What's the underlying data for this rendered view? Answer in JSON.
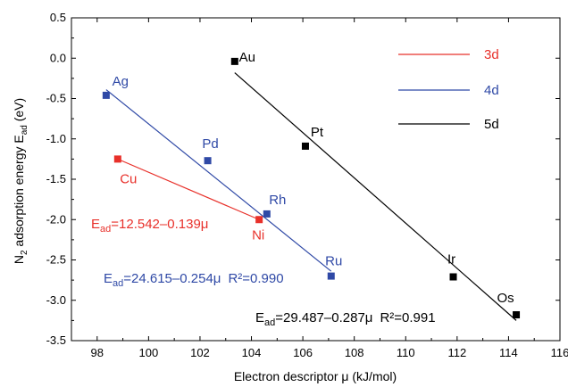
{
  "chart_data": {
    "type": "scatter",
    "title": "",
    "xlabel": "Electron descriptor μ (kJ/mol)",
    "ylabel_parts": {
      "main": "N",
      "sub1": "2",
      "mid": " adsorption energy E",
      "sub2": "ad",
      "unit": " (eV)"
    },
    "xlim": [
      97,
      116
    ],
    "ylim": [
      -3.5,
      0.5
    ],
    "xticks": [
      "98",
      "100",
      "102",
      "104",
      "106",
      "108",
      "110",
      "112",
      "114",
      "116"
    ],
    "yticks": [
      "0.5",
      "0.0",
      "-0.5",
      "-1.0",
      "-1.5",
      "-2.0",
      "-2.5",
      "-3.0",
      "-3.5"
    ],
    "legend_placement": "top-right",
    "grid": false,
    "series": [
      {
        "name": "3d",
        "color": "#e8302a",
        "points": [
          {
            "label": "Cu",
            "x": 98.8,
            "y": -1.25
          },
          {
            "label": "Ni",
            "x": 104.3,
            "y": -2.0
          }
        ],
        "fit_line": [
          [
            98.8,
            -1.25
          ],
          [
            104.3,
            -2.0
          ]
        ],
        "equation": {
          "lhs": "E",
          "lhs_sub": "ad",
          "rhs": "=12.542–0.139μ",
          "r2": ""
        }
      },
      {
        "name": "4d",
        "color": "#2f49a6",
        "points": [
          {
            "label": "Ag",
            "x": 98.35,
            "y": -0.46
          },
          {
            "label": "Pd",
            "x": 102.3,
            "y": -1.27
          },
          {
            "label": "Rh",
            "x": 104.6,
            "y": -1.93
          },
          {
            "label": "Ru",
            "x": 107.1,
            "y": -2.7
          }
        ],
        "fit_line": [
          [
            98.35,
            -0.39
          ],
          [
            107.1,
            -2.64
          ]
        ],
        "equation": {
          "lhs": "E",
          "lhs_sub": "ad",
          "rhs": "=24.615–0.254μ",
          "r2": "R²=0.990"
        }
      },
      {
        "name": "5d",
        "color": "#000000",
        "points": [
          {
            "label": "Au",
            "x": 103.35,
            "y": -0.04
          },
          {
            "label": "Pt",
            "x": 106.1,
            "y": -1.09
          },
          {
            "label": "Ir",
            "x": 111.85,
            "y": -2.71
          },
          {
            "label": "Os",
            "x": 114.3,
            "y": -3.18
          }
        ],
        "fit_line": [
          [
            103.35,
            -0.18
          ],
          [
            114.3,
            -3.25
          ]
        ],
        "equation": {
          "lhs": "E",
          "lhs_sub": "ad",
          "rhs": "=29.487–0.287μ",
          "r2": "R²=0.991"
        }
      }
    ]
  }
}
